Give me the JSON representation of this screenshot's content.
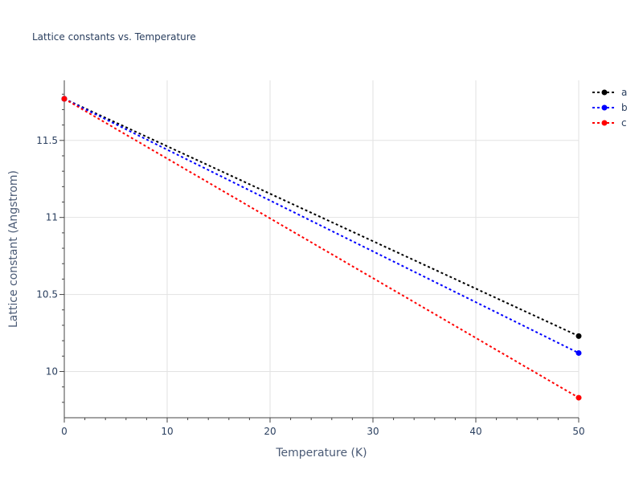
{
  "chart_data": {
    "type": "line",
    "title": "Lattice constants vs. Temperature",
    "xlabel": "Temperature (K)",
    "ylabel": "Lattice constant (Angstrom)",
    "xlim": [
      0,
      50
    ],
    "ylim": [
      9.7,
      11.89
    ],
    "x_ticks": [
      0,
      10,
      20,
      30,
      40,
      50
    ],
    "y_ticks": [
      10,
      10.5,
      11,
      11.5
    ],
    "grid": true,
    "legend_position": "top-right",
    "x": [
      0,
      50
    ],
    "series": [
      {
        "name": "a",
        "color": "#000000",
        "values": [
          11.77,
          10.23
        ]
      },
      {
        "name": "b",
        "color": "#0000ff",
        "values": [
          11.77,
          10.12
        ]
      },
      {
        "name": "c",
        "color": "#ff0000",
        "values": [
          11.77,
          9.83
        ]
      }
    ]
  }
}
